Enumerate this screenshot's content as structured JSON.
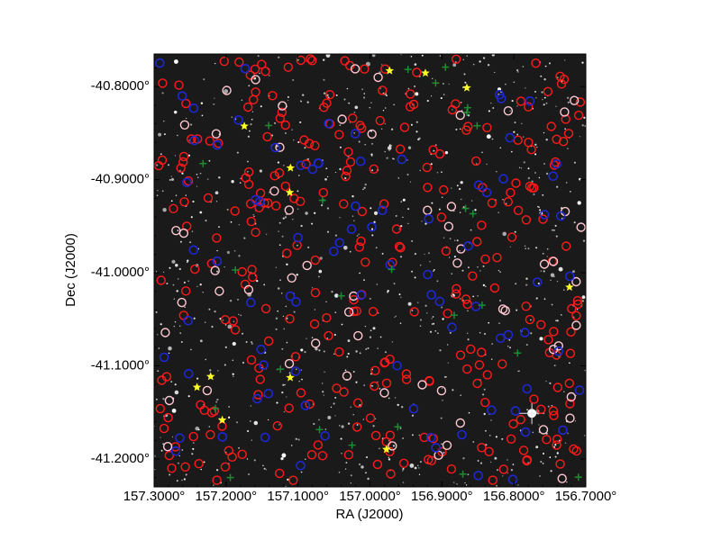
{
  "figure": {
    "xlabel": "RA (J2000)",
    "ylabel": "Dec (J2000)",
    "x_ticks": [
      "157.3000°",
      "157.2000°",
      "157.1000°",
      "157.0000°",
      "156.9000°",
      "156.8000°",
      "156.7000°"
    ],
    "y_ticks": [
      "-40.8000°",
      "-40.9000°",
      "-41.0000°",
      "-41.1000°",
      "-41.2000°"
    ],
    "ra_range_deg": [
      157.3,
      156.7
    ],
    "dec_range_deg": [
      -40.765,
      -41.23
    ],
    "x_tick_values": [
      157.3,
      157.2,
      157.1,
      157.0,
      156.9,
      156.8,
      156.7
    ],
    "y_tick_values": [
      -40.8,
      -40.9,
      -41.0,
      -41.1,
      -41.2
    ],
    "image_description": "Dark star field with catalog source markers",
    "colors": {
      "background_sky": "#1a1a1a",
      "marker_red_circle": "#ff1a1a",
      "marker_pink_circle": "#ffc8d2",
      "marker_blue_circle": "#1e28d2",
      "marker_green_plus": "#1e8c32",
      "marker_yellow_star": "#ffff28",
      "axis": "#000000"
    },
    "marker_sets": [
      {
        "kind": "red-circle",
        "count": 290
      },
      {
        "kind": "pink-circle",
        "count": 60
      },
      {
        "kind": "blue-circle",
        "count": 85
      },
      {
        "kind": "green-plus",
        "count": 25
      },
      {
        "kind": "yellow-star",
        "count": 12
      }
    ]
  }
}
